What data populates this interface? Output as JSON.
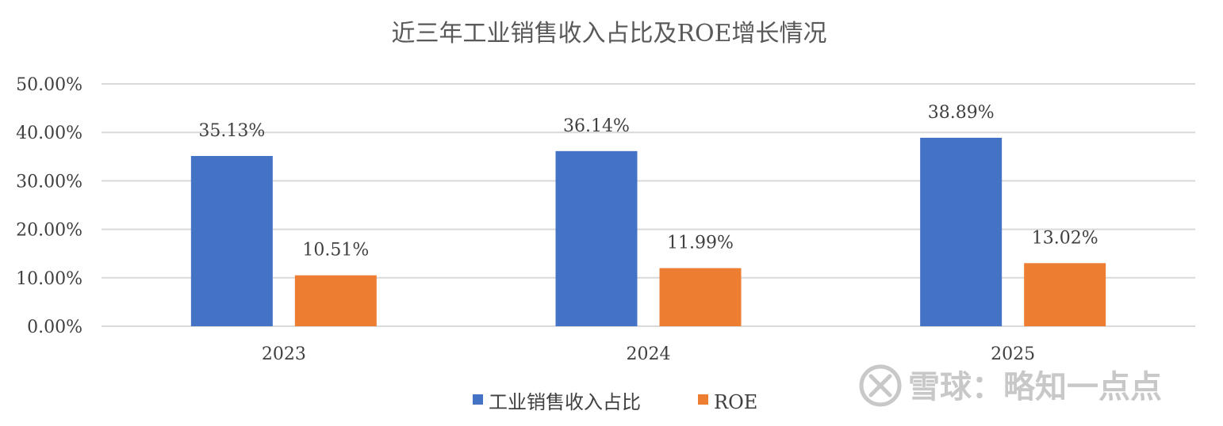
{
  "chart_data": {
    "type": "bar",
    "title": "近三年工业销售收入占比及ROE增长情况",
    "categories": [
      "2023",
      "2024",
      "2025"
    ],
    "series": [
      {
        "name": "工业销售收入占比",
        "values": [
          35.13,
          36.14,
          38.89
        ],
        "labels": [
          "35.13%",
          "36.14%",
          "38.89%"
        ],
        "color": "#4472C4"
      },
      {
        "name": "ROE",
        "values": [
          10.51,
          11.99,
          13.02
        ],
        "labels": [
          "10.51%",
          "11.99%",
          "13.02%"
        ],
        "color": "#ED7D31"
      }
    ],
    "ylim": [
      0,
      50
    ],
    "yticks": [
      "0.00%",
      "10.00%",
      "20.00%",
      "30.00%",
      "40.00%",
      "50.00%"
    ],
    "grid": true,
    "legend_position": "bottom"
  },
  "watermark": {
    "icon": "xueqiu-logo-icon",
    "text": "雪球：略知一点点"
  }
}
